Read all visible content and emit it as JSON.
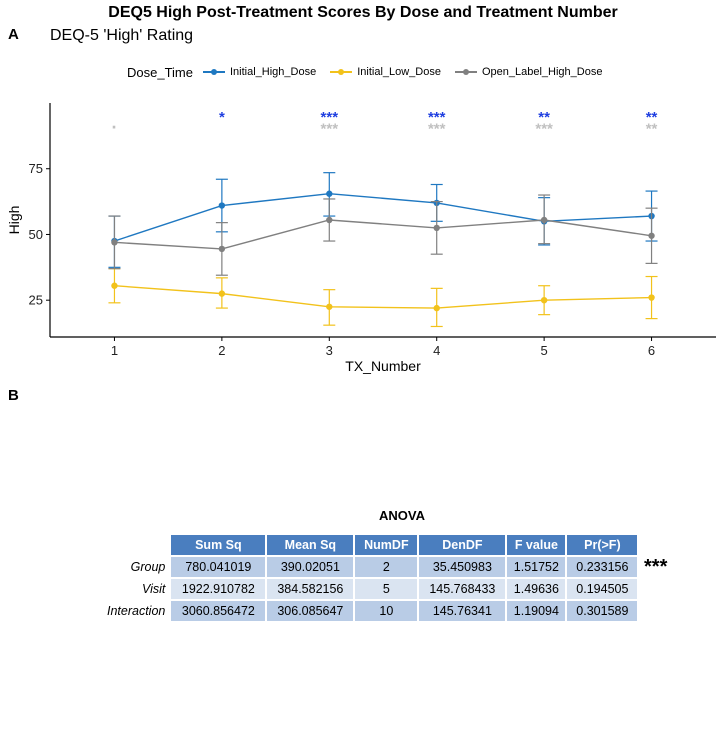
{
  "title": "DEQ5 High Post-Treatment Scores By Dose and Treatment Number",
  "panel_a_letter": "A",
  "panel_b_letter": "B",
  "subtitle": "DEQ-5 'High' Rating",
  "legend_title": "Dose_Time",
  "colors": {
    "Initial_High_Dose": "#1f78c1",
    "Initial_Low_Dose": "#f2c21b",
    "Open_Label_High_Dose": "#808080",
    "star_blue": "#1f3fe0",
    "star_gray": "#c0c0c0"
  },
  "chart_data": {
    "type": "line",
    "x": [
      1,
      2,
      3,
      4,
      5,
      6
    ],
    "xlabel": "TX_Number",
    "ylabel": "High",
    "xlim": [
      0.4,
      6.6
    ],
    "ylim": [
      11,
      100
    ],
    "yticks": [
      25,
      50,
      75
    ],
    "grid": false,
    "legend_position": "top",
    "series": [
      {
        "name": "Initial_High_Dose",
        "values": [
          47.5,
          61,
          65.5,
          62,
          55,
          57
        ],
        "lower": [
          37.5,
          51,
          57,
          55,
          46,
          47.5
        ],
        "upper": [
          57,
          71,
          73.5,
          69,
          64,
          66.5
        ]
      },
      {
        "name": "Initial_Low_Dose",
        "values": [
          30.5,
          27.5,
          22.5,
          22,
          25,
          26
        ],
        "lower": [
          24,
          22,
          15.5,
          15,
          19.5,
          18
        ],
        "upper": [
          37,
          33.5,
          29,
          29.5,
          30.5,
          34
        ]
      },
      {
        "name": "Open_Label_High_Dose",
        "values": [
          47,
          44.5,
          55.5,
          52.5,
          55.5,
          49.5
        ],
        "lower": [
          37,
          34.5,
          47.5,
          42.5,
          46.5,
          39
        ],
        "upper": [
          57,
          54.5,
          63.5,
          62.5,
          65,
          60
        ]
      }
    ],
    "annotations": [
      {
        "x": 2,
        "y": 95.5,
        "text": "*",
        "color": "blue"
      },
      {
        "x": 3,
        "y": 95.5,
        "text": "***",
        "color": "blue"
      },
      {
        "x": 4,
        "y": 95.5,
        "text": "***",
        "color": "blue"
      },
      {
        "x": 5,
        "y": 95.5,
        "text": "**",
        "color": "blue"
      },
      {
        "x": 6,
        "y": 95.5,
        "text": "**",
        "color": "blue"
      },
      {
        "x": 1,
        "y": 91,
        "text": "·",
        "color": "gray"
      },
      {
        "x": 3,
        "y": 91,
        "text": "***",
        "color": "gray"
      },
      {
        "x": 4,
        "y": 91,
        "text": "***",
        "color": "gray"
      },
      {
        "x": 5,
        "y": 91,
        "text": "***",
        "color": "gray"
      },
      {
        "x": 6,
        "y": 91,
        "text": "**",
        "color": "gray"
      }
    ]
  },
  "anova": {
    "title": "ANOVA",
    "columns": [
      "Sum Sq",
      "Mean Sq",
      "NumDF",
      "DenDF",
      "F value",
      "Pr(>F)"
    ],
    "rows": [
      {
        "label": "Group",
        "cells": [
          "780.041019",
          "390.02051",
          "2",
          "35.450983",
          "1.51752",
          "0.233156"
        ]
      },
      {
        "label": "Visit",
        "cells": [
          "1922.910782",
          "384.582156",
          "5",
          "145.768433",
          "1.49636",
          "0.194505"
        ]
      },
      {
        "label": "Interaction",
        "cells": [
          "3060.856472",
          "306.085647",
          "10",
          "145.76341",
          "1.19094",
          "0.301589"
        ]
      }
    ],
    "significance": "***"
  }
}
